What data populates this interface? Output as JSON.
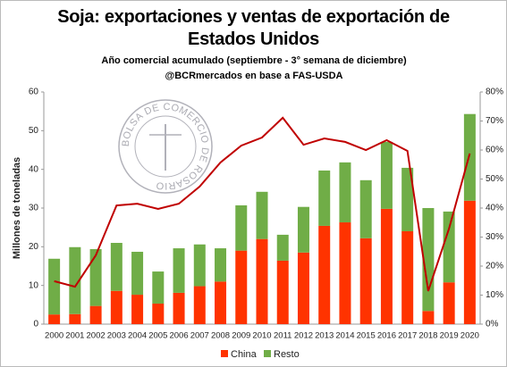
{
  "chart_data": {
    "type": "bar-line",
    "title": "Soja: exportaciones y ventas de exportación de Estados Unidos",
    "subtitle": "Año comercial acumulado (septiembre - 3° semana de diciembre)",
    "source": "@BCRmercados  en base a FAS-USDA",
    "y_label": "Millones de toneladas",
    "watermark": "BOLSA DE COMERCIO DE ROSARIO",
    "categories": [
      "2000",
      "2001",
      "2002",
      "2003",
      "2004",
      "2005",
      "2006",
      "2007",
      "2008",
      "2009",
      "2010",
      "2011",
      "2012",
      "2013",
      "2014",
      "2015",
      "2016",
      "2017",
      "2018",
      "2019",
      "2020"
    ],
    "series": [
      {
        "name": "China",
        "color": "#ff3300",
        "type": "bar",
        "values": [
          2.5,
          2.6,
          4.7,
          8.6,
          7.6,
          5.3,
          8.1,
          9.8,
          11.0,
          19.0,
          22.0,
          16.4,
          18.5,
          25.4,
          26.3,
          22.2,
          29.8,
          24.0,
          3.4,
          10.8,
          31.9
        ]
      },
      {
        "name": "Resto",
        "color": "#70ad47",
        "type": "bar",
        "values": [
          14.4,
          17.3,
          14.7,
          12.4,
          11.1,
          8.3,
          11.5,
          10.8,
          8.6,
          11.7,
          12.2,
          6.7,
          11.8,
          14.3,
          15.5,
          15.0,
          17.3,
          16.4,
          26.6,
          18.3,
          22.4
        ]
      },
      {
        "color": "#c00000",
        "type": "line",
        "axis": "y2",
        "values": [
          14.8,
          12.9,
          23.7,
          40.9,
          41.5,
          39.7,
          41.5,
          47.4,
          55.7,
          61.5,
          64.3,
          71.1,
          61.8,
          64.0,
          62.8,
          60.0,
          63.4,
          59.7,
          11.4,
          32.9,
          58.8
        ]
      }
    ],
    "ylim": [
      0,
      60
    ],
    "yticks": [
      0,
      10,
      20,
      30,
      40,
      50,
      60
    ],
    "y2lim": [
      0,
      80
    ],
    "y2ticks": [
      {
        "value": 0,
        "label": "0%"
      },
      {
        "value": 10,
        "label": "10%"
      },
      {
        "value": 20,
        "label": "20%"
      },
      {
        "value": 30,
        "label": "30%"
      },
      {
        "value": 40,
        "label": "40%"
      },
      {
        "value": 50,
        "label": "50%"
      },
      {
        "value": 60,
        "label": "60%"
      },
      {
        "value": 70,
        "label": "70%"
      },
      {
        "value": 80,
        "label": "80%"
      }
    ],
    "stacked": true,
    "legend": "bottom"
  }
}
